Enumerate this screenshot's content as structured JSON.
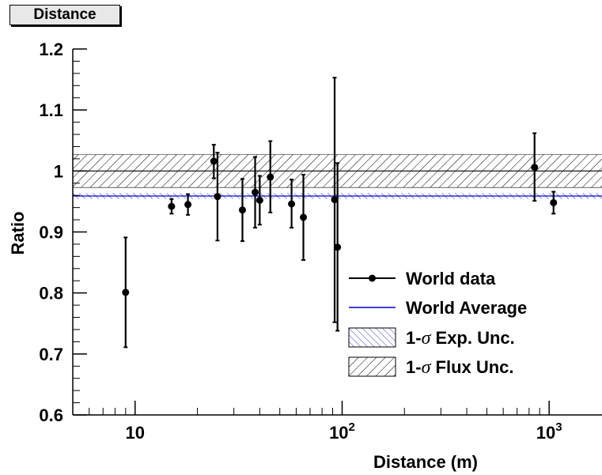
{
  "title": "Distance",
  "chart_data": {
    "type": "scatter",
    "xlabel": "Distance (m)",
    "ylabel": "Ratio",
    "xscale": "log",
    "xlim": [
      5,
      1800
    ],
    "ylim": [
      0.6,
      1.2
    ],
    "x_ticks": [
      {
        "value": 10,
        "base": "10",
        "exp": ""
      },
      {
        "value": 100,
        "base": "10",
        "exp": "2"
      },
      {
        "value": 1000,
        "base": "10",
        "exp": "3"
      }
    ],
    "y_ticks": [
      "0.6",
      "0.7",
      "0.8",
      "0.9",
      "1",
      "1.1",
      "1.2"
    ],
    "series": [
      {
        "name": "World data",
        "points": [
          {
            "x": 9.0,
            "y": 0.801,
            "lo": 0.711,
            "hi": 0.891
          },
          {
            "x": 15.0,
            "y": 0.942,
            "lo": 0.93,
            "hi": 0.954
          },
          {
            "x": 18.0,
            "y": 0.945,
            "lo": 0.928,
            "hi": 0.962
          },
          {
            "x": 24.0,
            "y": 1.016,
            "lo": 0.988,
            "hi": 1.043
          },
          {
            "x": 25.0,
            "y": 0.958,
            "lo": 0.886,
            "hi": 1.03
          },
          {
            "x": 33.0,
            "y": 0.936,
            "lo": 0.885,
            "hi": 0.987
          },
          {
            "x": 38.0,
            "y": 0.965,
            "lo": 0.907,
            "hi": 1.023
          },
          {
            "x": 40.0,
            "y": 0.952,
            "lo": 0.912,
            "hi": 0.992
          },
          {
            "x": 45.0,
            "y": 0.99,
            "lo": 0.932,
            "hi": 1.049
          },
          {
            "x": 57.0,
            "y": 0.946,
            "lo": 0.907,
            "hi": 0.986
          },
          {
            "x": 65.0,
            "y": 0.924,
            "lo": 0.854,
            "hi": 0.994
          },
          {
            "x": 92.0,
            "y": 0.953,
            "lo": 0.752,
            "hi": 1.153
          },
          {
            "x": 95.0,
            "y": 0.875,
            "lo": 0.738,
            "hi": 1.013
          },
          {
            "x": 850.0,
            "y": 1.006,
            "lo": 0.951,
            "hi": 1.062
          },
          {
            "x": 1050.0,
            "y": 0.948,
            "lo": 0.93,
            "hi": 0.966
          }
        ]
      },
      {
        "name": "World Average",
        "value": 0.959
      }
    ],
    "bands": [
      {
        "name": "1-σ Exp. Unc.",
        "low": 0.954,
        "high": 0.964,
        "color": "#3333cc"
      },
      {
        "name": "1-σ Flux Unc.",
        "low": 0.973,
        "high": 1.027,
        "color": "#000000"
      }
    ],
    "reference_line": 1.0,
    "legend": {
      "position": "bottom-right",
      "symbol": "σ",
      "entries": [
        {
          "label_pre": "World data",
          "label_post": ""
        },
        {
          "label_pre": "World Average",
          "label_post": ""
        },
        {
          "label_pre": "1-",
          "label_post": " Exp. Unc."
        },
        {
          "label_pre": "1-",
          "label_post": " Flux Unc."
        }
      ]
    },
    "colors": {
      "data": "#000000",
      "average": "#0000cc",
      "exp_band": "#3333cc",
      "flux_band": "#000000"
    }
  }
}
